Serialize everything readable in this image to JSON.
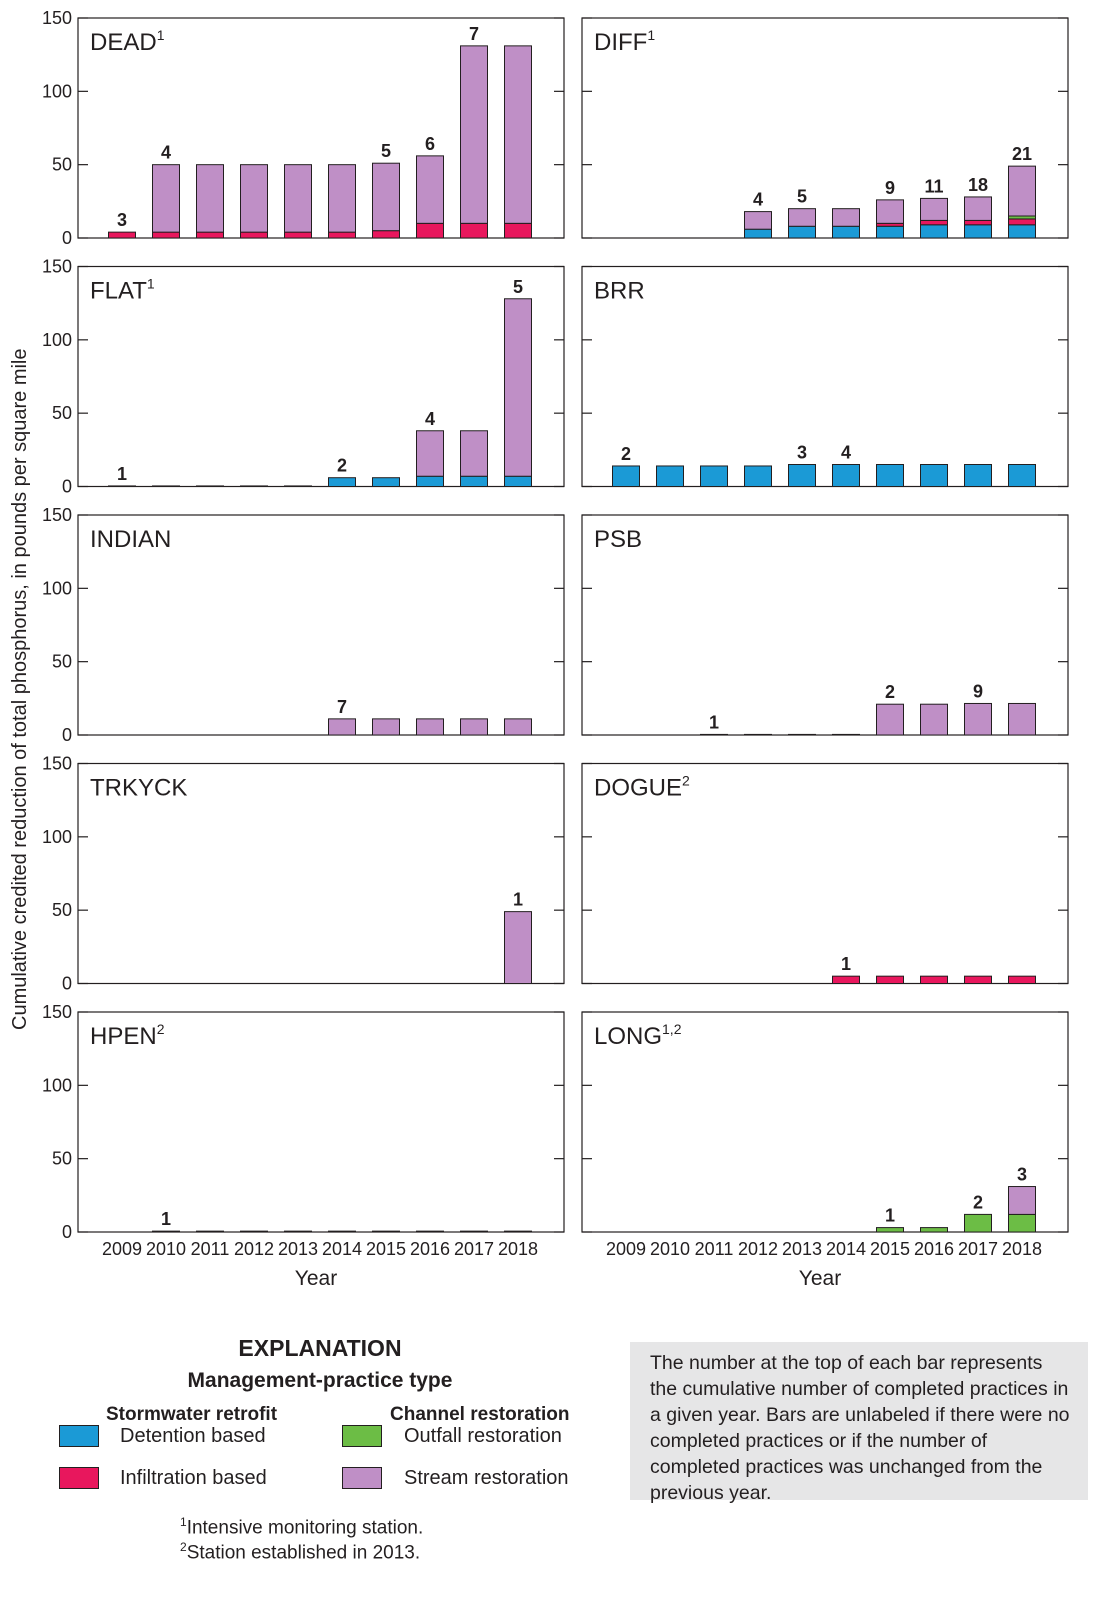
{
  "figure": {
    "y_axis_label": "Cumulative credited reduction of total phosphorus, in pounds per square mile",
    "x_axis_label": "Year"
  },
  "colors": {
    "detention": "#1b9ad6",
    "infiltration": "#e8175d",
    "outfall": "#6cbd45",
    "stream": "#bf8fc6"
  },
  "chart_data": [
    {
      "type": "bar",
      "stacked": true,
      "title": "DEAD",
      "title_sup": "1",
      "categories": [
        "2009",
        "2010",
        "2011",
        "2012",
        "2013",
        "2014",
        "2015",
        "2016",
        "2017",
        "2018"
      ],
      "ylim": [
        0,
        150
      ],
      "yticks": [
        0,
        50,
        100,
        150
      ],
      "series": [
        {
          "key": "detention",
          "values": [
            0,
            0,
            0,
            0,
            0,
            0,
            0,
            0,
            0,
            0
          ]
        },
        {
          "key": "infiltration",
          "values": [
            4,
            4,
            4,
            4,
            4,
            4,
            5,
            10,
            10,
            10
          ]
        },
        {
          "key": "outfall",
          "values": [
            0,
            0,
            0,
            0,
            0,
            0,
            0,
            0,
            0,
            0
          ]
        },
        {
          "key": "stream",
          "values": [
            0,
            46,
            46,
            46,
            46,
            46,
            46,
            46,
            121,
            121
          ]
        }
      ],
      "labels": [
        "3",
        "4",
        "",
        "",
        "",
        "",
        "5",
        "6",
        "7",
        ""
      ]
    },
    {
      "type": "bar",
      "stacked": true,
      "title": "DIFF",
      "title_sup": "1",
      "categories": [
        "2009",
        "2010",
        "2011",
        "2012",
        "2013",
        "2014",
        "2015",
        "2016",
        "2017",
        "2018"
      ],
      "ylim": [
        0,
        150
      ],
      "yticks": [
        0,
        50,
        100,
        150
      ],
      "series": [
        {
          "key": "detention",
          "values": [
            0,
            0,
            0,
            6,
            8,
            8,
            8,
            9,
            9,
            9
          ]
        },
        {
          "key": "infiltration",
          "values": [
            0,
            0,
            0,
            0,
            0,
            0,
            2,
            3,
            3,
            4
          ]
        },
        {
          "key": "outfall",
          "values": [
            0,
            0,
            0,
            0,
            0,
            0,
            0,
            0,
            0,
            2
          ]
        },
        {
          "key": "stream",
          "values": [
            0,
            0,
            0,
            12,
            12,
            12,
            16,
            15,
            16,
            34
          ]
        }
      ],
      "labels": [
        "",
        "",
        "",
        "4",
        "5",
        "",
        "9",
        "11",
        "18",
        "21"
      ]
    },
    {
      "type": "bar",
      "stacked": true,
      "title": "FLAT",
      "title_sup": "1",
      "categories": [
        "2009",
        "2010",
        "2011",
        "2012",
        "2013",
        "2014",
        "2015",
        "2016",
        "2017",
        "2018"
      ],
      "ylim": [
        0,
        150
      ],
      "yticks": [
        0,
        50,
        100,
        150
      ],
      "series": [
        {
          "key": "detention",
          "values": [
            0,
            0,
            0,
            0,
            0,
            6,
            6,
            7,
            7,
            7
          ]
        },
        {
          "key": "infiltration",
          "values": [
            0,
            0,
            0,
            0,
            0,
            0,
            0,
            0,
            0,
            0
          ]
        },
        {
          "key": "outfall",
          "values": [
            0,
            0,
            0,
            0,
            0,
            0,
            0,
            0,
            0,
            0
          ]
        },
        {
          "key": "stream",
          "values": [
            0.4,
            0.4,
            0.4,
            0.4,
            0.4,
            0,
            0,
            31,
            31,
            121
          ]
        }
      ],
      "labels": [
        "1",
        "",
        "",
        "",
        "",
        "2",
        "",
        "4",
        "",
        "5"
      ]
    },
    {
      "type": "bar",
      "stacked": true,
      "title": "BRR",
      "title_sup": "",
      "categories": [
        "2009",
        "2010",
        "2011",
        "2012",
        "2013",
        "2014",
        "2015",
        "2016",
        "2017",
        "2018"
      ],
      "ylim": [
        0,
        150
      ],
      "yticks": [
        0,
        50,
        100,
        150
      ],
      "series": [
        {
          "key": "detention",
          "values": [
            14,
            14,
            14,
            14,
            15,
            15,
            15,
            15,
            15,
            15
          ]
        },
        {
          "key": "infiltration",
          "values": [
            0,
            0,
            0,
            0,
            0,
            0,
            0,
            0,
            0,
            0
          ]
        },
        {
          "key": "outfall",
          "values": [
            0,
            0,
            0,
            0,
            0,
            0,
            0,
            0,
            0,
            0
          ]
        },
        {
          "key": "stream",
          "values": [
            0,
            0,
            0,
            0,
            0,
            0,
            0,
            0,
            0,
            0
          ]
        }
      ],
      "labels": [
        "2",
        "",
        "",
        "",
        "3",
        "4",
        "",
        "",
        "",
        ""
      ]
    },
    {
      "type": "bar",
      "stacked": true,
      "title": "INDIAN",
      "title_sup": "",
      "categories": [
        "2009",
        "2010",
        "2011",
        "2012",
        "2013",
        "2014",
        "2015",
        "2016",
        "2017",
        "2018"
      ],
      "ylim": [
        0,
        150
      ],
      "yticks": [
        0,
        50,
        100,
        150
      ],
      "series": [
        {
          "key": "detention",
          "values": [
            0,
            0,
            0,
            0,
            0,
            0,
            0,
            0,
            0,
            0
          ]
        },
        {
          "key": "infiltration",
          "values": [
            0,
            0,
            0,
            0,
            0,
            0,
            0,
            0,
            0,
            0
          ]
        },
        {
          "key": "outfall",
          "values": [
            0,
            0,
            0,
            0,
            0,
            0,
            0,
            0,
            0,
            0
          ]
        },
        {
          "key": "stream",
          "values": [
            0,
            0,
            0,
            0,
            0,
            11,
            11,
            11,
            11,
            11
          ]
        }
      ],
      "labels": [
        "",
        "",
        "",
        "",
        "",
        "7",
        "",
        "",
        "",
        ""
      ]
    },
    {
      "type": "bar",
      "stacked": true,
      "title": "PSB",
      "title_sup": "",
      "categories": [
        "2009",
        "2010",
        "2011",
        "2012",
        "2013",
        "2014",
        "2015",
        "2016",
        "2017",
        "2018"
      ],
      "ylim": [
        0,
        150
      ],
      "yticks": [
        0,
        50,
        100,
        150
      ],
      "series": [
        {
          "key": "detention",
          "values": [
            0,
            0,
            0,
            0,
            0,
            0,
            0,
            0,
            0,
            0
          ]
        },
        {
          "key": "infiltration",
          "values": [
            0,
            0,
            0,
            0,
            0,
            0,
            0,
            0,
            0,
            0
          ]
        },
        {
          "key": "outfall",
          "values": [
            0,
            0,
            0,
            0,
            0,
            0,
            0,
            0,
            0,
            0
          ]
        },
        {
          "key": "stream",
          "values": [
            0,
            0,
            0.4,
            0.4,
            0.4,
            0.4,
            21,
            21,
            21.5,
            21.5
          ]
        }
      ],
      "labels": [
        "",
        "",
        "1",
        "",
        "",
        "",
        "2",
        "",
        "9",
        ""
      ]
    },
    {
      "type": "bar",
      "stacked": true,
      "title": "TRKYCK",
      "title_sup": "",
      "categories": [
        "2009",
        "2010",
        "2011",
        "2012",
        "2013",
        "2014",
        "2015",
        "2016",
        "2017",
        "2018"
      ],
      "ylim": [
        0,
        150
      ],
      "yticks": [
        0,
        50,
        100,
        150
      ],
      "series": [
        {
          "key": "detention",
          "values": [
            0,
            0,
            0,
            0,
            0,
            0,
            0,
            0,
            0,
            0
          ]
        },
        {
          "key": "infiltration",
          "values": [
            0,
            0,
            0,
            0,
            0,
            0,
            0,
            0,
            0,
            0
          ]
        },
        {
          "key": "outfall",
          "values": [
            0,
            0,
            0,
            0,
            0,
            0,
            0,
            0,
            0,
            0
          ]
        },
        {
          "key": "stream",
          "values": [
            0,
            0,
            0,
            0,
            0,
            0,
            0,
            0,
            0,
            49
          ]
        }
      ],
      "labels": [
        "",
        "",
        "",
        "",
        "",
        "",
        "",
        "",
        "",
        "1"
      ]
    },
    {
      "type": "bar",
      "stacked": true,
      "title": "DOGUE",
      "title_sup": "2",
      "categories": [
        "2009",
        "2010",
        "2011",
        "2012",
        "2013",
        "2014",
        "2015",
        "2016",
        "2017",
        "2018"
      ],
      "ylim": [
        0,
        150
      ],
      "yticks": [
        0,
        50,
        100,
        150
      ],
      "series": [
        {
          "key": "detention",
          "values": [
            0,
            0,
            0,
            0,
            0,
            0,
            0,
            0,
            0,
            0
          ]
        },
        {
          "key": "infiltration",
          "values": [
            0,
            0,
            0,
            0,
            0,
            5,
            5,
            5,
            5,
            5
          ]
        },
        {
          "key": "outfall",
          "values": [
            0,
            0,
            0,
            0,
            0,
            0,
            0,
            0,
            0,
            0
          ]
        },
        {
          "key": "stream",
          "values": [
            0,
            0,
            0,
            0,
            0,
            0,
            0,
            0,
            0,
            0
          ]
        }
      ],
      "labels": [
        "",
        "",
        "",
        "",
        "",
        "1",
        "",
        "",
        "",
        ""
      ]
    },
    {
      "type": "bar",
      "stacked": true,
      "title": "HPEN",
      "title_sup": "2",
      "categories": [
        "2009",
        "2010",
        "2011",
        "2012",
        "2013",
        "2014",
        "2015",
        "2016",
        "2017",
        "2018"
      ],
      "ylim": [
        0,
        150
      ],
      "yticks": [
        0,
        50,
        100,
        150
      ],
      "series": [
        {
          "key": "detention",
          "values": [
            0,
            0,
            0,
            0,
            0,
            0,
            0,
            0,
            0,
            0
          ]
        },
        {
          "key": "infiltration",
          "values": [
            0,
            0,
            0,
            0,
            0,
            0,
            0,
            0,
            0,
            0
          ]
        },
        {
          "key": "outfall",
          "values": [
            0,
            0,
            0,
            0,
            0,
            0,
            0,
            0,
            0,
            0
          ]
        },
        {
          "key": "stream",
          "values": [
            0,
            0.6,
            0.6,
            0.6,
            0.6,
            0.6,
            0.6,
            0.6,
            0.6,
            0.6
          ]
        }
      ],
      "labels": [
        "",
        "1",
        "",
        "",
        "",
        "",
        "",
        "",
        "",
        ""
      ],
      "xlabel": "Year"
    },
    {
      "type": "bar",
      "stacked": true,
      "title": "LONG",
      "title_sup": "1,2",
      "categories": [
        "2009",
        "2010",
        "2011",
        "2012",
        "2013",
        "2014",
        "2015",
        "2016",
        "2017",
        "2018"
      ],
      "ylim": [
        0,
        150
      ],
      "yticks": [
        0,
        50,
        100,
        150
      ],
      "series": [
        {
          "key": "detention",
          "values": [
            0,
            0,
            0,
            0,
            0,
            0,
            0,
            0,
            0,
            0
          ]
        },
        {
          "key": "infiltration",
          "values": [
            0,
            0,
            0,
            0,
            0,
            0,
            0,
            0,
            0,
            0
          ]
        },
        {
          "key": "outfall",
          "values": [
            0,
            0,
            0,
            0,
            0,
            0,
            3,
            3,
            12,
            12
          ]
        },
        {
          "key": "stream",
          "values": [
            0,
            0,
            0,
            0,
            0,
            0,
            0,
            0,
            0,
            19
          ]
        }
      ],
      "labels": [
        "",
        "",
        "",
        "",
        "",
        "",
        "1",
        "",
        "2",
        "3"
      ],
      "xlabel": "Year"
    }
  ],
  "legend": {
    "title": "EXPLANATION",
    "subtitle": "Management-practice type",
    "group1": "Stormwater retrofit",
    "group2": "Channel restoration",
    "items": {
      "detention": "Detention based",
      "infiltration": "Infiltration based",
      "outfall": "Outfall restoration",
      "stream": "Stream restoration"
    }
  },
  "footnotes": {
    "f1_mark": "1",
    "f1_text": "Intensive monitoring station.",
    "f2_mark": "2",
    "f2_text": "Station established in 2013."
  },
  "note": "The number at the top of each bar represents the cumulative number of completed practices in a given year. Bars are unlabeled if there were no completed practices or if the number of completed practices was unchanged from the previous year."
}
